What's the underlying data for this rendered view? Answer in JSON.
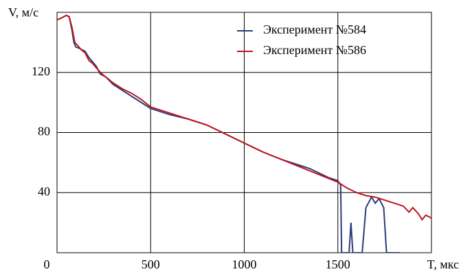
{
  "chart_data": {
    "type": "line",
    "x_label": "T, мкс",
    "y_label": "V, м/с",
    "xlim": [
      0,
      2000
    ],
    "xticks": [
      0,
      500,
      1000,
      1500
    ],
    "ylim": [
      0,
      160
    ],
    "yticks": [
      40,
      80,
      120
    ],
    "grid": true,
    "legend": "upper right",
    "series": [
      {
        "name": "Эксперимент №584",
        "color": "#2b3a78",
        "x": [
          0,
          20,
          50,
          65,
          80,
          90,
          100,
          120,
          150,
          170,
          190,
          210,
          230,
          260,
          300,
          350,
          400,
          450,
          500,
          550,
          600,
          700,
          800,
          900,
          1000,
          1100,
          1200,
          1300,
          1350,
          1400,
          1450,
          1500,
          1515,
          1520,
          1560,
          1570,
          1580,
          1630,
          1650,
          1680,
          1700,
          1720,
          1745,
          1760,
          1830
        ],
        "values": [
          155,
          156,
          158,
          157,
          148,
          140,
          137,
          136,
          134,
          130,
          127,
          124,
          119,
          117,
          112,
          108,
          104,
          100,
          96,
          94,
          92,
          89,
          85,
          79,
          73,
          67,
          62,
          58,
          56,
          53,
          50,
          48,
          45,
          0,
          0,
          20,
          0,
          0,
          30,
          37,
          33,
          36,
          30,
          0,
          0
        ]
      },
      {
        "name": "Эксперимент №586",
        "color": "#c0141c",
        "x": [
          0,
          20,
          50,
          65,
          80,
          95,
          110,
          130,
          150,
          170,
          190,
          210,
          240,
          270,
          300,
          350,
          400,
          450,
          500,
          550,
          600,
          700,
          800,
          900,
          1000,
          1050,
          1100,
          1200,
          1300,
          1400,
          1500,
          1550,
          1600,
          1650,
          1700,
          1750,
          1800,
          1850,
          1880,
          1900,
          1930,
          1950,
          1970,
          2000
        ],
        "values": [
          155,
          156,
          158,
          157,
          150,
          140,
          138,
          135,
          133,
          128,
          126,
          123,
          119,
          116,
          113,
          109,
          106,
          102,
          97,
          95,
          93,
          89,
          85,
          79,
          73,
          70,
          67,
          62,
          57,
          52,
          47,
          43,
          40,
          38,
          37,
          35,
          33,
          31,
          27,
          30,
          26,
          22,
          25,
          23
        ]
      }
    ]
  }
}
